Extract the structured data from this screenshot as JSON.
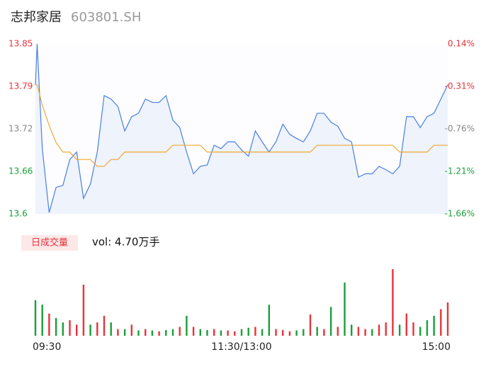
{
  "chart_data": [
    {
      "type": "line",
      "title": "志邦家居",
      "subtitle": "603801.SH",
      "x": [
        0,
        1,
        4,
        8,
        12,
        16,
        20,
        24,
        28,
        32,
        36,
        40,
        44,
        48,
        52,
        56,
        60,
        64,
        68,
        72,
        76,
        80,
        84,
        88,
        92,
        96,
        100,
        104,
        108,
        112,
        116,
        120,
        124,
        128,
        132,
        136,
        140,
        144,
        148,
        152,
        156,
        160,
        164,
        168,
        172,
        176,
        180,
        184,
        188,
        192,
        196,
        200,
        204,
        208,
        212,
        216,
        220,
        224,
        228,
        232,
        236,
        240
      ],
      "xlim": [
        0,
        240
      ],
      "xticks": [
        {
          "value": 0,
          "label": "09:30"
        },
        {
          "value": 120,
          "label": "11:30/13:00"
        },
        {
          "value": 240,
          "label": "15:00"
        }
      ],
      "series": [
        {
          "color": "#4a7fe0",
          "values": [
            13.79,
            13.85,
            13.696,
            13.602,
            13.639,
            13.642,
            13.68,
            13.691,
            13.623,
            13.644,
            13.691,
            13.774,
            13.769,
            13.758,
            13.722,
            13.743,
            13.748,
            13.769,
            13.764,
            13.764,
            13.774,
            13.738,
            13.727,
            13.691,
            13.659,
            13.67,
            13.672,
            13.701,
            13.696,
            13.706,
            13.706,
            13.694,
            13.685,
            13.722,
            13.706,
            13.691,
            13.706,
            13.732,
            13.717,
            13.711,
            13.706,
            13.722,
            13.748,
            13.748,
            13.735,
            13.729,
            13.711,
            13.706,
            13.654,
            13.659,
            13.659,
            13.67,
            13.665,
            13.659,
            13.67,
            13.743,
            13.743,
            13.727,
            13.743,
            13.748,
            13.769,
            13.79
          ]
        },
        {
          "color": "#f0a830",
          "values": [
            13.79,
            13.79,
            13.76,
            13.73,
            13.705,
            13.691,
            13.691,
            13.68,
            13.68,
            13.68,
            13.67,
            13.67,
            13.68,
            13.68,
            13.691,
            13.691,
            13.691,
            13.691,
            13.691,
            13.691,
            13.691,
            13.701,
            13.701,
            13.701,
            13.701,
            13.701,
            13.691,
            13.691,
            13.691,
            13.691,
            13.691,
            13.691,
            13.691,
            13.691,
            13.691,
            13.691,
            13.691,
            13.691,
            13.691,
            13.691,
            13.691,
            13.691,
            13.701,
            13.701,
            13.701,
            13.701,
            13.701,
            13.701,
            13.701,
            13.701,
            13.701,
            13.701,
            13.701,
            13.701,
            13.691,
            13.691,
            13.691,
            13.691,
            13.691,
            13.701,
            13.701,
            13.701
          ]
        }
      ],
      "ylim": [
        13.6,
        13.85
      ],
      "yticks": [
        13.85,
        {
          "value": 13.7875,
          "label": "13.79"
        },
        {
          "value": 13.725,
          "label": "13.72"
        },
        {
          "value": 13.6625,
          "label": "13.66"
        },
        13.6
      ],
      "ytick_colors": [
        "#e8333a",
        "#e8333a",
        "#888888",
        "#1a9e3a",
        "#1a9e3a"
      ],
      "y2lim": [
        -1.66,
        0.14
      ],
      "y2ticks": [
        {
          "value": 0.14,
          "label": "0.14%"
        },
        {
          "value": -0.31,
          "label": "-0.31%"
        },
        {
          "value": -0.76,
          "label": "-0.76%"
        },
        {
          "value": -1.21,
          "label": "-1.21%"
        },
        {
          "value": -1.66,
          "label": "-1.66%"
        }
      ],
      "y2tick_colors": [
        "#e8333a",
        "#e8333a",
        "#888888",
        "#1a9e3a",
        "#1a9e3a"
      ],
      "grid": false
    },
    {
      "type": "bar",
      "title": "日成交量",
      "subtitle": "vol: 4.70万手",
      "x": [
        0,
        4,
        8,
        12,
        16,
        20,
        24,
        28,
        32,
        36,
        40,
        44,
        48,
        52,
        56,
        60,
        64,
        68,
        72,
        76,
        80,
        84,
        88,
        92,
        96,
        100,
        104,
        108,
        112,
        116,
        120,
        124,
        128,
        132,
        136,
        140,
        144,
        148,
        152,
        156,
        160,
        164,
        168,
        172,
        176,
        180,
        184,
        188,
        192,
        196,
        200,
        204,
        208,
        212,
        216,
        220,
        224,
        228,
        232,
        236,
        240
      ],
      "xlim": [
        0,
        240
      ],
      "values": [
        800,
        700,
        500,
        400,
        300,
        350,
        250,
        1150,
        250,
        300,
        450,
        300,
        150,
        150,
        250,
        120,
        150,
        120,
        100,
        130,
        150,
        200,
        450,
        200,
        150,
        130,
        150,
        120,
        120,
        100,
        150,
        180,
        200,
        150,
        700,
        150,
        130,
        100,
        120,
        150,
        480,
        200,
        150,
        650,
        200,
        1200,
        250,
        200,
        150,
        150,
        250,
        300,
        1500,
        250,
        500,
        300,
        200,
        350,
        450,
        600,
        750
      ],
      "colors": [
        "#1a9e3a",
        "#1a9e3a",
        "#e8333a",
        "#1a9e3a",
        "#1a9e3a",
        "#e8333a",
        "#e8333a",
        "#e8333a",
        "#1a9e3a",
        "#e8333a",
        "#e8333a",
        "#1a9e3a",
        "#e8333a",
        "#1a9e3a",
        "#e8333a",
        "#1a9e3a",
        "#e8333a",
        "#1a9e3a",
        "#e8333a",
        "#1a9e3a",
        "#1a9e3a",
        "#e8333a",
        "#1a9e3a",
        "#e8333a",
        "#1a9e3a",
        "#1a9e3a",
        "#e8333a",
        "#1a9e3a",
        "#e8333a",
        "#e8333a",
        "#1a9e3a",
        "#1a9e3a",
        "#e8333a",
        "#1a9e3a",
        "#1a9e3a",
        "#e8333a",
        "#e8333a",
        "#e8333a",
        "#1a9e3a",
        "#1a9e3a",
        "#e8333a",
        "#1a9e3a",
        "#e8333a",
        "#1a9e3a",
        "#e8333a",
        "#1a9e3a",
        "#1a9e3a",
        "#e8333a",
        "#e8333a",
        "#1a9e3a",
        "#e8333a",
        "#e8333a",
        "#e8333a",
        "#1a9e3a",
        "#e8333a",
        "#e8333a",
        "#1a9e3a",
        "#1a9e3a",
        "#1a9e3a",
        "#e8333a",
        "#e8333a"
      ]
    }
  ]
}
